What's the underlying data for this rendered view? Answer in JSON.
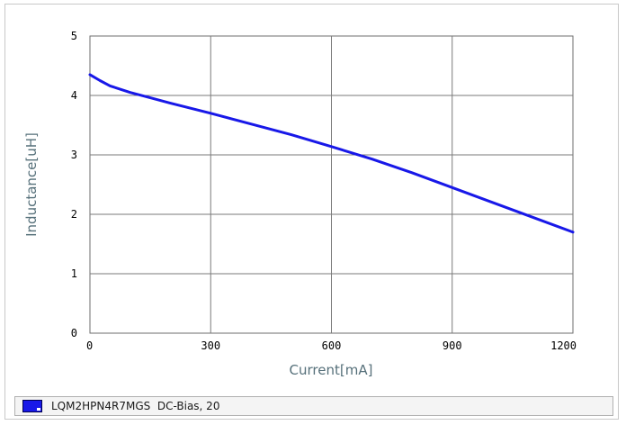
{
  "chart_data": {
    "type": "line",
    "xlabel": "Current[mA]",
    "ylabel": "Inductance[uH]",
    "xlim": [
      0,
      1200
    ],
    "ylim": [
      0,
      5
    ],
    "x_ticks": [
      0,
      300,
      600,
      900,
      1200
    ],
    "x_tick_labels": [
      "0",
      "300",
      "600",
      "900",
      "1200"
    ],
    "y_ticks": [
      0,
      1,
      2,
      3,
      4,
      5
    ],
    "y_tick_labels": [
      "0",
      "1",
      "2",
      "3",
      "4",
      "5"
    ],
    "grid": true,
    "legend_position": "bottom",
    "series": [
      {
        "name": "LQM2HPN4R7MGS  DC-Bias, 20",
        "color": "#1818e8",
        "x": [
          0,
          25,
          50,
          100,
          150,
          200,
          300,
          400,
          500,
          600,
          700,
          800,
          900,
          1000,
          1100,
          1200
        ],
        "y": [
          4.35,
          4.25,
          4.16,
          4.05,
          3.96,
          3.87,
          3.7,
          3.52,
          3.34,
          3.14,
          2.93,
          2.7,
          2.45,
          2.2,
          1.95,
          1.7
        ]
      }
    ]
  },
  "legend": {
    "label": "LQM2HPN4R7MGS  DC-Bias, 20"
  }
}
